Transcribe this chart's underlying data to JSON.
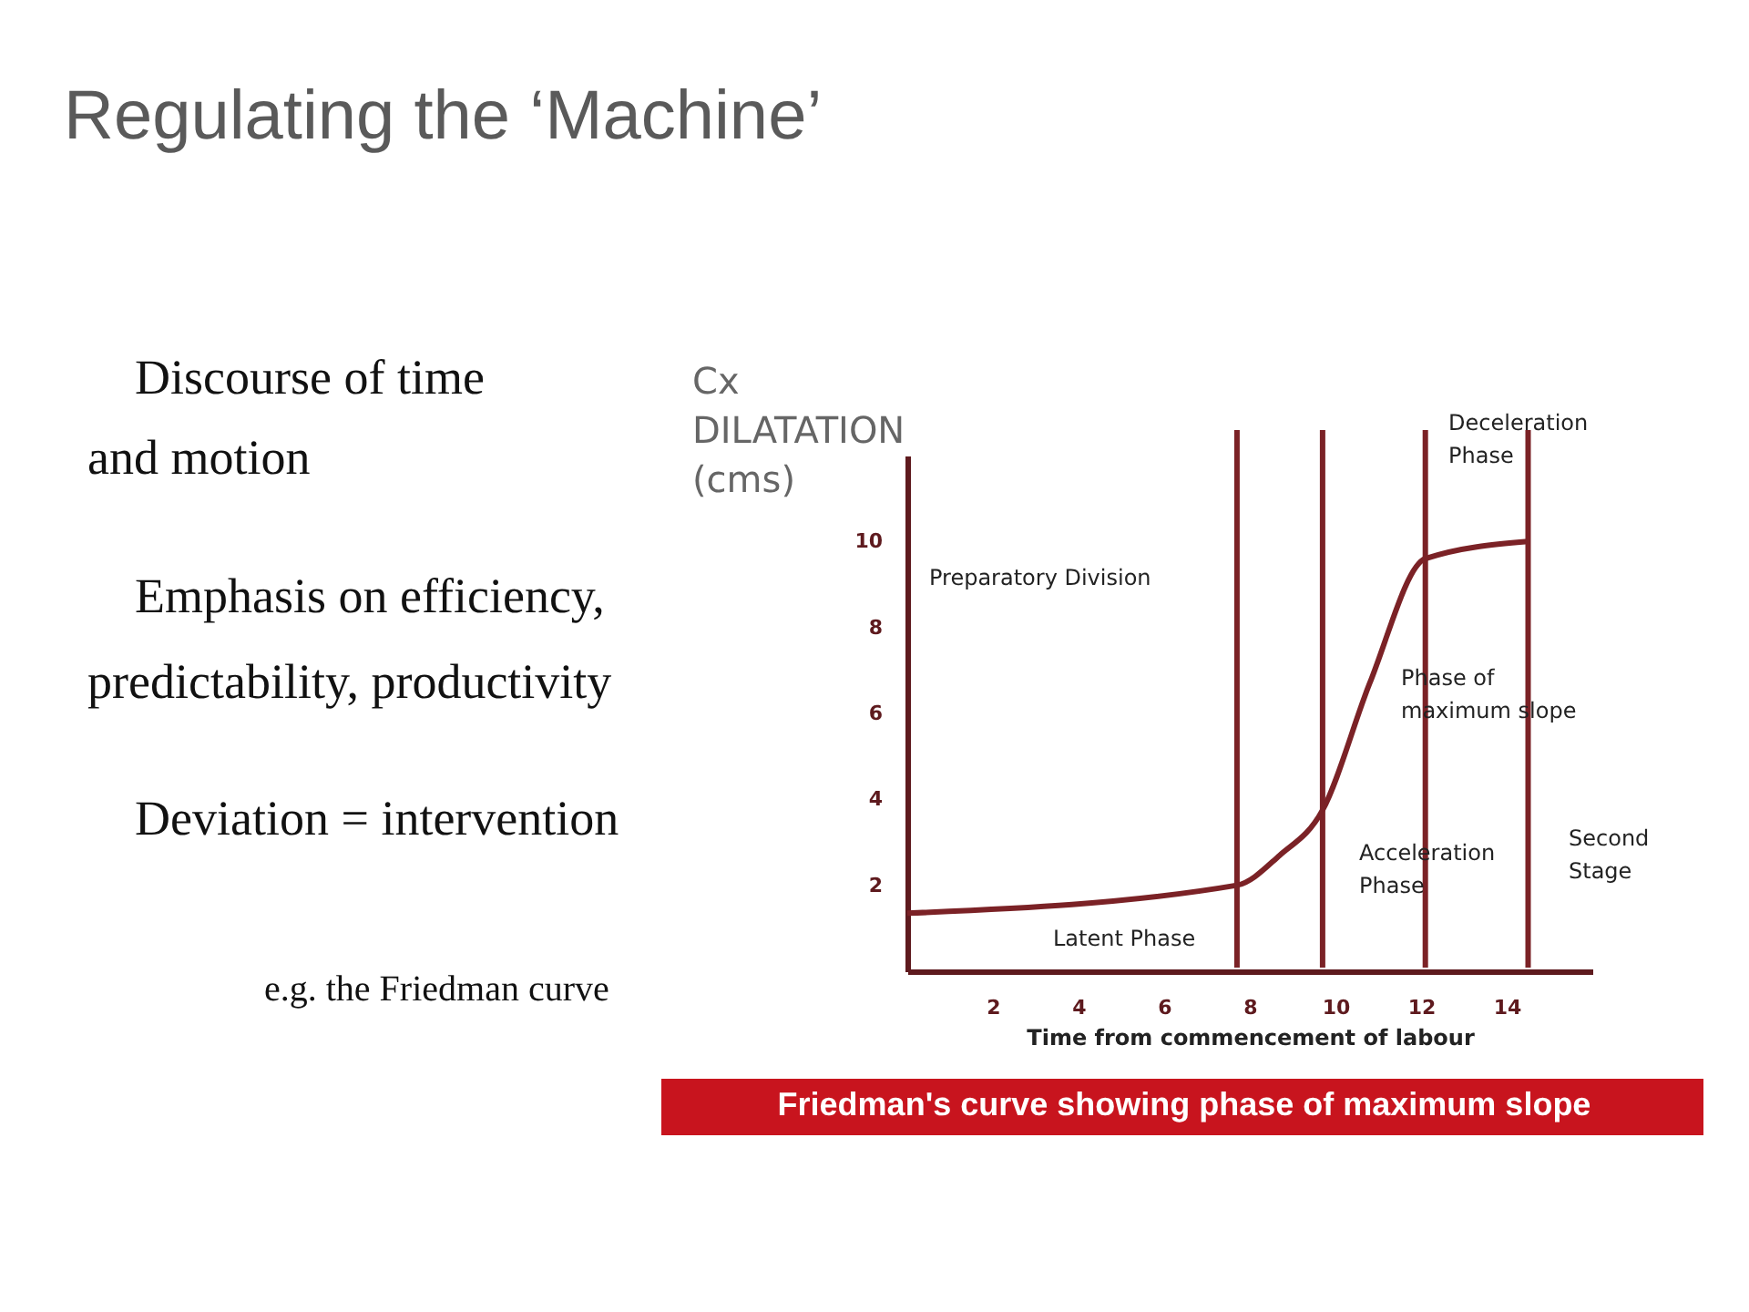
{
  "chart_data": {
    "type": "line",
    "title": "Regulating the ‘Machine’",
    "xlabel": "Time from commencement of labour",
    "ylabel": "Cx DILATATION (cms)",
    "x": [
      0,
      7.7,
      8.7,
      9.7,
      10.8,
      12.1,
      14.5
    ],
    "series": [
      {
        "color": "#7b2226",
        "values": [
          1.35,
          2.0,
          2.7,
          3.75,
          6.7,
          9.6,
          10.0
        ]
      }
    ],
    "xlim": [
      0,
      16
    ],
    "ylim": [
      0,
      12
    ],
    "xticks": [
      2,
      4,
      6,
      8,
      10,
      12,
      14
    ],
    "yticks": [
      2,
      4,
      6,
      8,
      10
    ],
    "grid": false,
    "marker": "none",
    "line_style": "solid",
    "ref_lines": [
      {
        "axis": "x",
        "value": 7.7,
        "color": "#7b2226"
      },
      {
        "axis": "x",
        "value": 9.7,
        "color": "#7b2226"
      },
      {
        "axis": "x",
        "value": 12.1,
        "color": "#7b2226"
      },
      {
        "axis": "x",
        "value": 14.5,
        "color": "#7b2226"
      }
    ],
    "annotations": [
      "Discourse of time\nand motion",
      "Emphasis on efficiency,\npredictability, productivity",
      "Deviation = intervention",
      "e.g. the Friedman curve",
      "Friedman's curve showing phase of maximum slope",
      "Deceleration\nPhase",
      "Preparatory Division",
      "Latent Phase",
      "Acceleration\nPhase",
      "Phase of\nmaximum slope",
      "Second\nStage"
    ]
  }
}
